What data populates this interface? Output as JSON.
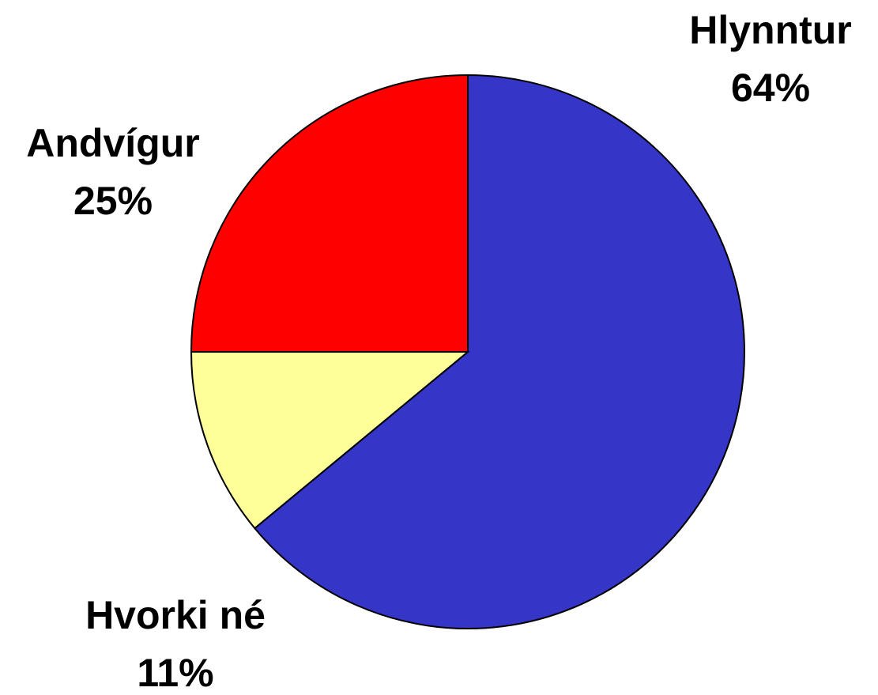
{
  "chart_data": {
    "type": "pie",
    "categories": [
      "Hlynntur",
      "Hvorki né",
      "Andvígur"
    ],
    "values": [
      64,
      11,
      25
    ],
    "value_labels": [
      "64%",
      "11%",
      "25%"
    ],
    "colors": [
      "#3535c8",
      "#ffff99",
      "#ff0000"
    ]
  }
}
